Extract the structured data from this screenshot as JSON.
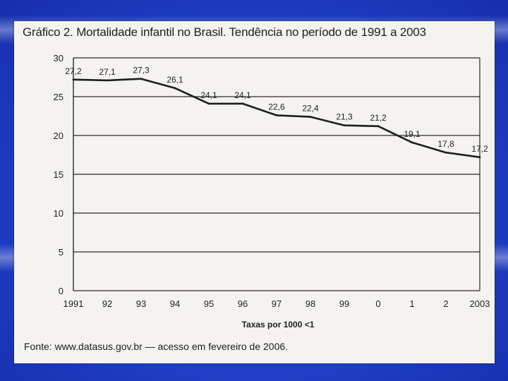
{
  "chart_data": {
    "type": "line",
    "title": "Gráfico 2. Mortalidade infantil no Brasil. Tendência no período de 1991 a 2003",
    "xlabel": "Taxas por 1000 <1",
    "ylabel": "",
    "categories": [
      "1991",
      "92",
      "93",
      "94",
      "95",
      "96",
      "97",
      "98",
      "99",
      "0",
      "1",
      "2",
      "2003"
    ],
    "series": [
      {
        "name": "Mortalidade infantil",
        "values": [
          27.2,
          27.1,
          27.3,
          26.1,
          24.1,
          24.1,
          22.6,
          22.4,
          21.3,
          21.2,
          19.1,
          17.8,
          17.2
        ],
        "labels": [
          "27,2",
          "27,1",
          "27,3",
          "26,1",
          "24,1",
          "24,1",
          "22,6",
          "22,4",
          "21,3",
          "21,2",
          "19,1",
          "17,8",
          "17,2"
        ]
      }
    ],
    "ylim": [
      0,
      30
    ],
    "yticks": [
      0,
      5,
      10,
      15,
      20,
      25,
      30
    ],
    "grid": true,
    "source": "Fonte: www.datasus.gov.br — acesso em fevereiro de 2006.",
    "colors": {
      "line": "#1e1e1e",
      "grid": "#2a2a2a",
      "paper": "#f4f3ef"
    }
  }
}
